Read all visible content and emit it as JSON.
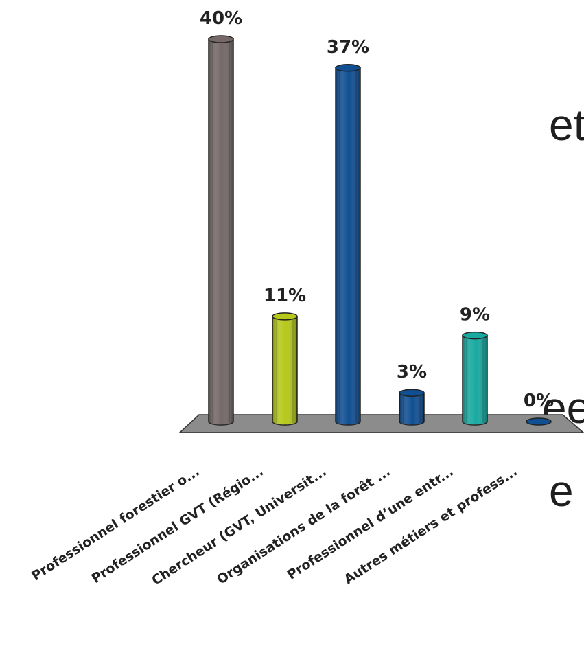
{
  "background_text": {
    "fragment_1": "et",
    "fragment_2": "ee",
    "fragment_3": "e"
  },
  "chart_data": {
    "type": "bar",
    "style": "3d-cylinder",
    "categories": [
      "Professionnel forestier o...",
      "Professionnel GVT (Régio...",
      "Chercheur (GVT, Universit...",
      "Organisations de la forêt ...",
      "Professionnel d’une entr...",
      "Autres métiers et profess..."
    ],
    "values": [
      40,
      11,
      37,
      3,
      9,
      0
    ],
    "value_labels": [
      "40%",
      "11%",
      "37%",
      "3%",
      "9%",
      "0%"
    ],
    "unit": "%",
    "colors": [
      "#746868",
      "#b5c81a",
      "#0f4f92",
      "#0f4f92",
      "#17a9a0",
      "#0f4f92"
    ],
    "floor_color": "#8c8c8c",
    "ylim": [
      0,
      40
    ],
    "grid": false,
    "legend": "none",
    "title": "",
    "xlabel": "",
    "ylabel": ""
  }
}
